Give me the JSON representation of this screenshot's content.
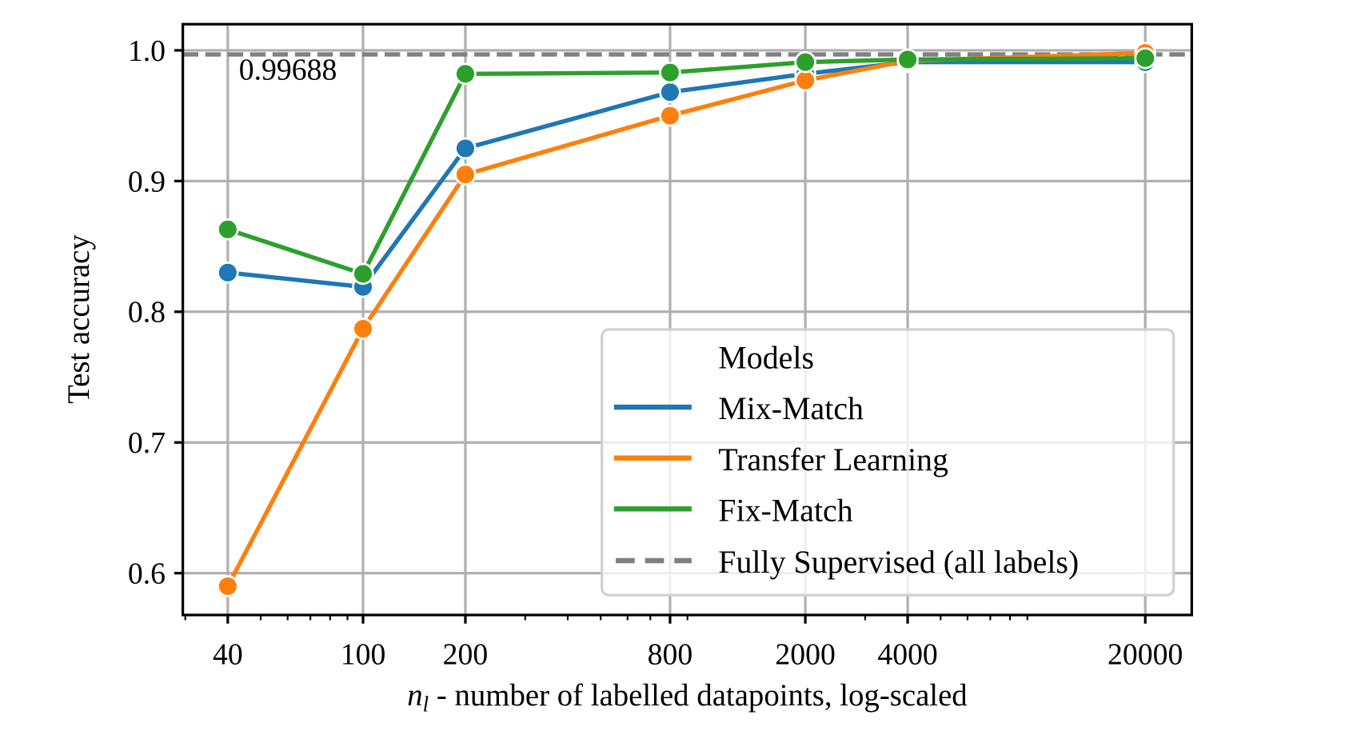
{
  "chart_data": {
    "type": "line",
    "xlabel_var": "n",
    "xlabel_sub": "l",
    "xlabel_rest": " - number of labelled datapoints, log-scaled",
    "ylabel": "Test accuracy",
    "xscale": "log",
    "xlim": [
      29.5,
      27400
    ],
    "ylim": [
      0.568,
      1.02
    ],
    "grid": true,
    "x": [
      40,
      100,
      200,
      800,
      2000,
      4000,
      20000
    ],
    "xticks": [
      "40",
      "100",
      "200",
      "800",
      "2000",
      "4000",
      "20000"
    ],
    "yticks": [
      0.6,
      0.7,
      0.8,
      0.9,
      1.0
    ],
    "ytick_labels": [
      "0.6",
      "0.7",
      "0.8",
      "0.9",
      "1.0"
    ],
    "series": [
      {
        "name": "Mix-Match",
        "color": "#1f77b4",
        "values": [
          0.83,
          0.819,
          0.925,
          0.968,
          0.982,
          0.991,
          0.991
        ]
      },
      {
        "name": "Transfer Learning",
        "color": "#ff7f0e",
        "values": [
          0.59,
          0.787,
          0.905,
          0.95,
          0.977,
          0.992,
          0.998
        ]
      },
      {
        "name": "Fix-Match",
        "color": "#2ca02c",
        "values": [
          0.863,
          0.829,
          0.982,
          0.983,
          0.991,
          0.993,
          0.994
        ]
      }
    ],
    "reference_line": {
      "name": "Fully Supervised (all labels)",
      "value": 0.99688,
      "label": "0.99688",
      "color": "#808080",
      "style": "dashed"
    },
    "legend": {
      "title": "Models",
      "placement": "lower-right"
    }
  }
}
